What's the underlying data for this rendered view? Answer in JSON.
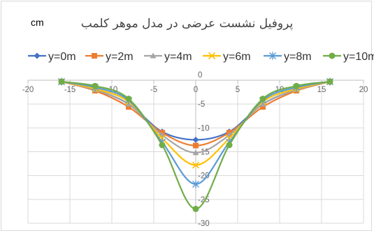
{
  "chart_data": {
    "type": "line",
    "title": "پروفیل نشست عرضی در مدل موهر کلمب",
    "unit_label": "cm",
    "xlim": [
      -20,
      20
    ],
    "ylim": [
      -30,
      0
    ],
    "x_ticks": [
      -20,
      -15,
      -10,
      -5,
      0,
      5,
      10,
      15,
      20
    ],
    "y_ticks": [
      0,
      -5,
      -10,
      -15,
      -20,
      -25,
      -30
    ],
    "x_tick_labels": [
      "-20",
      "-15",
      "-10",
      "-5",
      "0",
      "5",
      "10",
      "15",
      "20"
    ],
    "y_tick_labels": [
      "0",
      "-5",
      "-10",
      "-15",
      "-20",
      "-25",
      "-30"
    ],
    "grid": true,
    "legend_position": "top",
    "x": [
      -16,
      -12,
      -8,
      -4,
      0,
      4,
      8,
      12,
      16
    ],
    "series": [
      {
        "name": "y=0m",
        "color": "#4472c4",
        "marker": "diamond",
        "values": [
          -0.3,
          -2.0,
          -5.0,
          -10.8,
          -12.5,
          -10.8,
          -5.0,
          -2.0,
          -0.3
        ]
      },
      {
        "name": "y=2m",
        "color": "#ed7d31",
        "marker": "square",
        "values": [
          -0.3,
          -2.2,
          -5.6,
          -11.0,
          -13.7,
          -11.0,
          -5.6,
          -2.2,
          -0.3
        ]
      },
      {
        "name": "y=4m",
        "color": "#a5a5a5",
        "marker": "triangle",
        "values": [
          -0.3,
          -2.0,
          -5.0,
          -11.5,
          -15.2,
          -11.5,
          -5.0,
          -2.0,
          -0.3
        ]
      },
      {
        "name": "y=6m",
        "color": "#ffc000",
        "marker": "x",
        "values": [
          -0.3,
          -1.8,
          -4.5,
          -12.2,
          -17.8,
          -12.2,
          -4.5,
          -1.8,
          -0.3
        ]
      },
      {
        "name": "y=8m",
        "color": "#5b9bd5",
        "marker": "star",
        "values": [
          -0.3,
          -1.5,
          -4.2,
          -13.0,
          -21.8,
          -13.0,
          -4.2,
          -1.5,
          -0.3
        ]
      },
      {
        "name": "y=10m",
        "color": "#70ad47",
        "marker": "circle",
        "values": [
          -0.3,
          -1.2,
          -3.9,
          -13.6,
          -27.0,
          -13.6,
          -3.9,
          -1.2,
          -0.3
        ]
      }
    ]
  }
}
